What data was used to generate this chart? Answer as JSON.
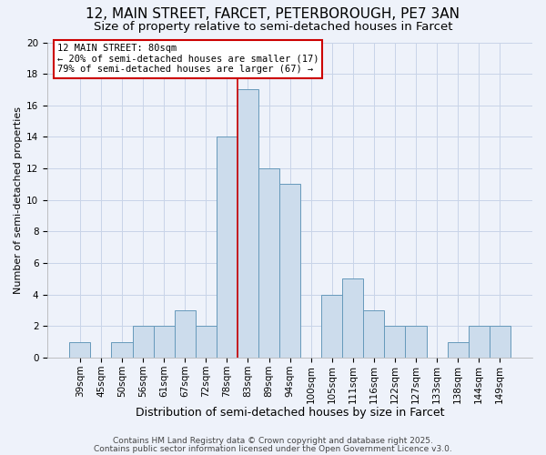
{
  "title": "12, MAIN STREET, FARCET, PETERBOROUGH, PE7 3AN",
  "subtitle": "Size of property relative to semi-detached houses in Farcet",
  "xlabel": "Distribution of semi-detached houses by size in Farcet",
  "ylabel": "Number of semi-detached properties",
  "bar_labels": [
    "39sqm",
    "45sqm",
    "50sqm",
    "56sqm",
    "61sqm",
    "67sqm",
    "72sqm",
    "78sqm",
    "83sqm",
    "89sqm",
    "94sqm",
    "100sqm",
    "105sqm",
    "111sqm",
    "116sqm",
    "122sqm",
    "127sqm",
    "133sqm",
    "138sqm",
    "144sqm",
    "149sqm"
  ],
  "bar_values": [
    1,
    0,
    1,
    2,
    2,
    3,
    2,
    14,
    17,
    12,
    11,
    0,
    4,
    5,
    3,
    2,
    2,
    0,
    1,
    2,
    2
  ],
  "bar_color": "#ccdcec",
  "bar_edge_color": "#6699bb",
  "bar_edge_width": 0.7,
  "highlight_index": 7,
  "highlight_color": "#cc0000",
  "ylim": [
    0,
    20
  ],
  "yticks": [
    0,
    2,
    4,
    6,
    8,
    10,
    12,
    14,
    16,
    18,
    20
  ],
  "grid_color": "#c8d4e8",
  "bg_color": "#eef2fa",
  "annotation_title": "12 MAIN STREET: 80sqm",
  "annotation_line1": "← 20% of semi-detached houses are smaller (17)",
  "annotation_line2": "79% of semi-detached houses are larger (67) →",
  "annotation_box_edge_color": "#cc0000",
  "footer_line1": "Contains HM Land Registry data © Crown copyright and database right 2025.",
  "footer_line2": "Contains public sector information licensed under the Open Government Licence v3.0.",
  "title_fontsize": 11,
  "subtitle_fontsize": 9.5,
  "xlabel_fontsize": 9,
  "ylabel_fontsize": 8,
  "tick_fontsize": 7.5,
  "annotation_fontsize": 7.5,
  "footer_fontsize": 6.5
}
